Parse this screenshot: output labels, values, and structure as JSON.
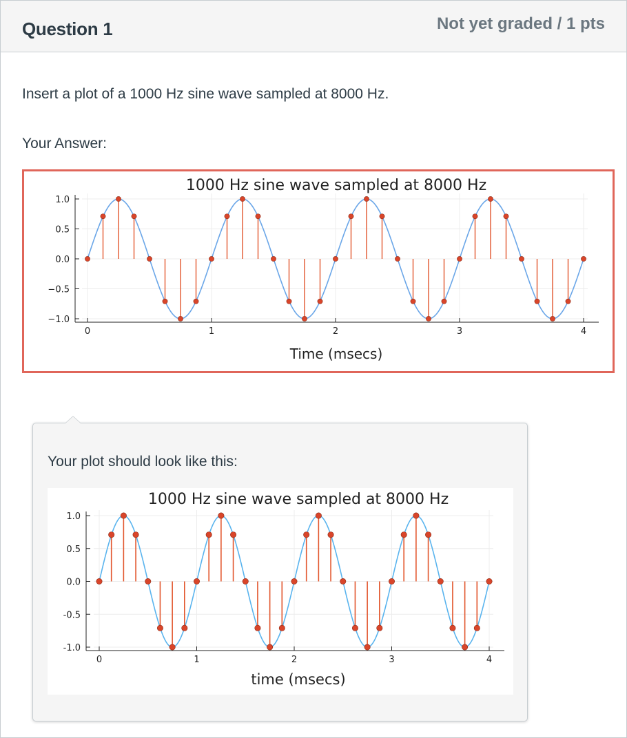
{
  "question": {
    "title": "Question 1",
    "points": "Not yet graded / 1 pts",
    "prompt": "Insert a plot of a 1000 Hz sine wave sampled at 8000 Hz."
  },
  "answer": {
    "label": "Your Answer:"
  },
  "hint": {
    "text": "Your plot should look like this:"
  },
  "colors": {
    "accent_border": "#e0665a",
    "sine_line": "#6aa6e8",
    "stem": "#e2562d",
    "marker": "#d9452a",
    "ref_sine_line": "#5ab4ee"
  },
  "chart_data": [
    {
      "type": "line",
      "title": "1000 Hz sine wave sampled at 8000 Hz",
      "xlabel": "Time (msecs)",
      "ylabel": "",
      "xlim": [
        0,
        4
      ],
      "ylim": [
        -1.0,
        1.0
      ],
      "xticks": [
        "0",
        "1",
        "2",
        "3",
        "4"
      ],
      "yticks": [
        "1.0",
        "0.5",
        "0.0",
        "−0.5",
        "−1.0"
      ],
      "grid": true,
      "frequency_hz": 1000,
      "sample_rate_hz": 8000,
      "samples": {
        "x": [
          0,
          0.125,
          0.25,
          0.375,
          0.5,
          0.625,
          0.75,
          0.875,
          1,
          1.125,
          1.25,
          1.375,
          1.5,
          1.625,
          1.75,
          1.875,
          2,
          2.125,
          2.25,
          2.375,
          2.5,
          2.625,
          2.75,
          2.875,
          3,
          3.125,
          3.25,
          3.375,
          3.5,
          3.625,
          3.75,
          3.875,
          4
        ],
        "y": [
          0,
          0.71,
          1,
          0.71,
          0,
          -0.71,
          -1,
          -0.71,
          0,
          0.71,
          1,
          0.71,
          0,
          -0.71,
          -1,
          -0.71,
          0,
          0.71,
          1,
          0.71,
          0,
          -0.71,
          -1,
          -0.71,
          0,
          0.71,
          1,
          0.71,
          0,
          -0.71,
          -1,
          -0.71,
          0
        ]
      },
      "series": [
        {
          "name": "",
          "kind": "continuous sine"
        },
        {
          "name": "",
          "kind": "sampled stems"
        }
      ]
    },
    {
      "type": "line",
      "title": "1000 Hz sine wave sampled at 8000 Hz",
      "xlabel": "time (msecs)",
      "ylabel": "",
      "xlim": [
        0,
        4
      ],
      "ylim": [
        -1.0,
        1.0
      ],
      "xticks": [
        "0",
        "1",
        "2",
        "3",
        "4"
      ],
      "yticks": [
        "1.0",
        "0.5",
        "0.0",
        "-0.5",
        "-1.0"
      ],
      "grid": true,
      "frequency_hz": 1000,
      "sample_rate_hz": 8000,
      "samples": {
        "x": [
          0,
          0.125,
          0.25,
          0.375,
          0.5,
          0.625,
          0.75,
          0.875,
          1,
          1.125,
          1.25,
          1.375,
          1.5,
          1.625,
          1.75,
          1.875,
          2,
          2.125,
          2.25,
          2.375,
          2.5,
          2.625,
          2.75,
          2.875,
          3,
          3.125,
          3.25,
          3.375,
          3.5,
          3.625,
          3.75,
          3.875,
          4
        ],
        "y": [
          0,
          0.71,
          1,
          0.71,
          0,
          -0.71,
          -1,
          -0.71,
          0,
          0.71,
          1,
          0.71,
          0,
          -0.71,
          -1,
          -0.71,
          0,
          0.71,
          1,
          0.71,
          0,
          -0.71,
          -1,
          -0.71,
          0,
          0.71,
          1,
          0.71,
          0,
          -0.71,
          -1,
          -0.71,
          0
        ]
      },
      "series": [
        {
          "name": "",
          "kind": "continuous sine"
        },
        {
          "name": "",
          "kind": "sampled stems"
        }
      ]
    }
  ]
}
